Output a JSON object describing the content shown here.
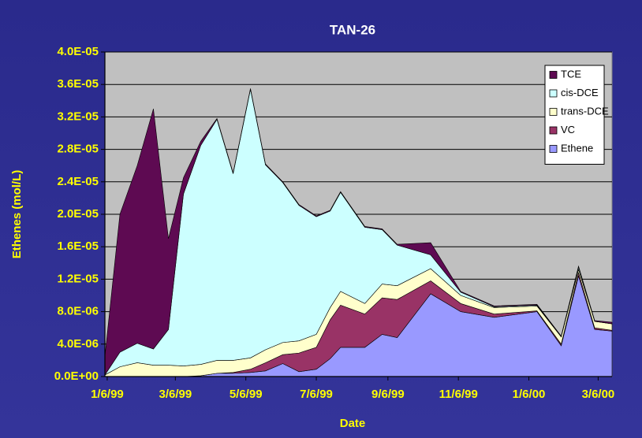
{
  "chart_data": {
    "type": "stacked-area",
    "title": "TAN-26",
    "x_label": "Date",
    "y_label": "Ethenes (mol/L)",
    "x": [
      "1/4/99",
      "1/17/99",
      "2/1/99",
      "2/15/99",
      "2/28/99",
      "3/13/99",
      "3/28/99",
      "4/11/99",
      "4/25/99",
      "5/10/99",
      "5/23/99",
      "6/7/99",
      "6/21/99",
      "7/6/99",
      "7/18/99",
      "7/27/99",
      "8/17/99",
      "9/1/99",
      "9/14/99",
      "10/13/99",
      "11/8/99",
      "12/7/99",
      "1/13/00",
      "2/3/00",
      "2/18/00",
      "3/3/00",
      "3/18/00"
    ],
    "xlim": [
      "1/4/99",
      "3/18/00"
    ],
    "xticks": [
      "1/6/99",
      "3/6/99",
      "5/6/99",
      "7/6/99",
      "9/6/99",
      "11/6/99",
      "1/6/00",
      "3/6/00"
    ],
    "ylim": [
      0,
      4e-05
    ],
    "yticks": [
      {
        "value": 0,
        "label": "0.0E+00"
      },
      {
        "value": 4e-06,
        "label": "4.0E-06"
      },
      {
        "value": 8e-06,
        "label": "8.0E-06"
      },
      {
        "value": 1.2e-05,
        "label": "1.2E-05"
      },
      {
        "value": 1.6e-05,
        "label": "1.6E-05"
      },
      {
        "value": 2e-05,
        "label": "2.0E-05"
      },
      {
        "value": 2.4e-05,
        "label": "2.4E-05"
      },
      {
        "value": 2.8e-05,
        "label": "2.8E-05"
      },
      {
        "value": 3.2e-05,
        "label": "3.2E-05"
      },
      {
        "value": 3.6e-05,
        "label": "3.6E-05"
      },
      {
        "value": 4e-05,
        "label": "4.0E-05"
      }
    ],
    "grid": true,
    "legend": "upper right",
    "series": [
      {
        "name": "TCE",
        "color": "#5e0a52",
        "values": [
          2.3e-06,
          1.7e-05,
          2.19e-05,
          2.96e-05,
          1.12e-05,
          2e-06,
          5e-07,
          1e-07,
          1e-07,
          1e-07,
          1e-07,
          1e-07,
          1e-07,
          1e-07,
          1e-07,
          1e-07,
          1e-07,
          1e-07,
          1e-07,
          1.5e-06,
          1e-07,
          1e-07,
          1e-07,
          1e-07,
          1e-07,
          1e-07,
          2e-07
        ]
      },
      {
        "name": "cis-DCE",
        "color": "#ccffff",
        "values": [
          0,
          1.8e-06,
          2.4e-06,
          2e-06,
          4.4e-06,
          2.12e-05,
          2.7e-05,
          2.97e-05,
          2.3e-05,
          3.31e-05,
          2.28e-05,
          1.97e-05,
          1.67e-05,
          1.45e-05,
          1.19e-05,
          1.22e-05,
          9.4e-06,
          6.7e-06,
          5e-06,
          1.7e-06,
          4e-07,
          1e-07,
          1e-07,
          0,
          3e-07,
          0,
          0
        ]
      },
      {
        "name": "trans-DCE",
        "color": "#ffffcc",
        "values": [
          2e-07,
          1.2e-06,
          1.7e-06,
          1.4e-06,
          1.4e-06,
          1.3e-06,
          1.4e-06,
          1.6e-06,
          1.5e-06,
          1.4e-06,
          1.6e-06,
          1.5e-06,
          1.5e-06,
          1.6e-06,
          1.5e-06,
          1.7e-06,
          1.3e-06,
          1.7e-06,
          1.7e-06,
          1.5e-06,
          1e-06,
          8e-07,
          6e-07,
          9e-07,
          4e-07,
          8e-07,
          8e-07
        ]
      },
      {
        "name": "VC",
        "color": "#993366",
        "values": [
          0,
          0,
          0,
          0,
          0,
          0,
          0,
          0,
          1e-07,
          4e-07,
          1e-06,
          1.1e-06,
          2.3e-06,
          2.7e-06,
          4.8e-06,
          5.2e-06,
          4.1e-06,
          4.5e-06,
          4.7e-06,
          1.6e-06,
          1e-06,
          4e-07,
          1e-07,
          2e-07,
          4e-07,
          2e-07,
          1e-07
        ]
      },
      {
        "name": "Ethene",
        "color": "#9999ff",
        "values": [
          0,
          0,
          0,
          0,
          0,
          0,
          1e-07,
          4e-07,
          4e-07,
          5e-07,
          7e-07,
          1.6e-06,
          6e-07,
          9e-07,
          2.2e-06,
          3.6e-06,
          3.6e-06,
          5.2e-06,
          4.8e-06,
          1.02e-05,
          8e-06,
          7.3e-06,
          8e-06,
          3.8e-06,
          1.24e-05,
          5.8e-06,
          5.6e-06
        ]
      }
    ]
  }
}
